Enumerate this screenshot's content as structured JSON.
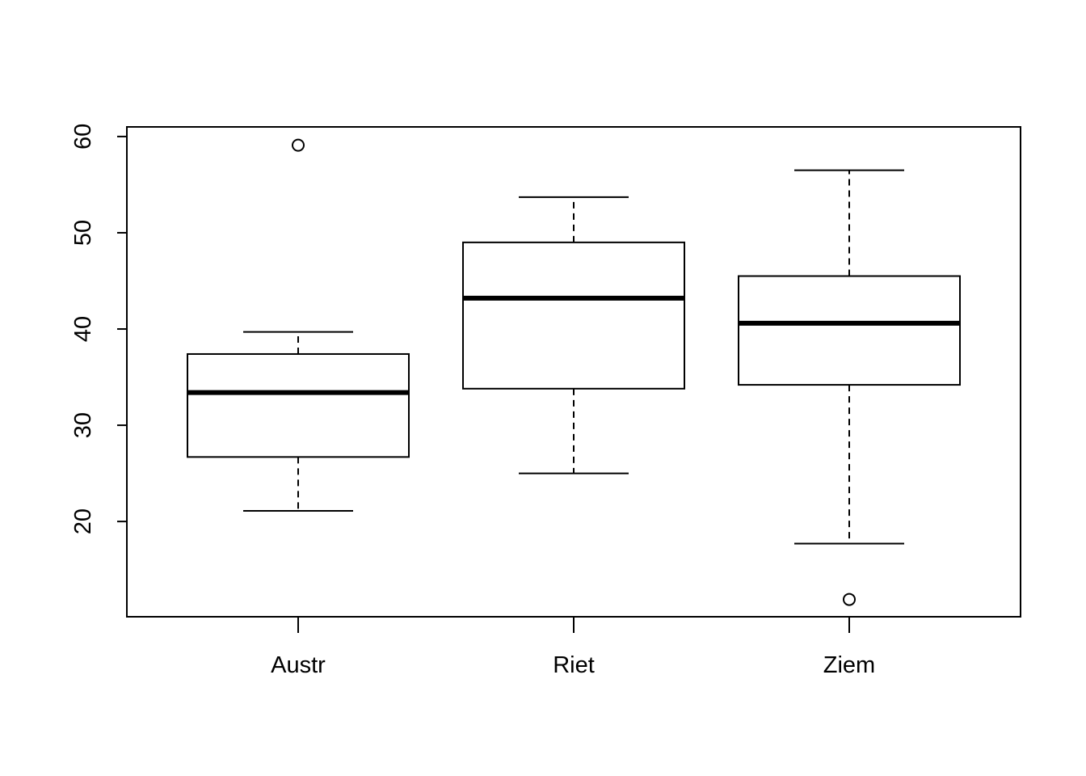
{
  "chart_data": {
    "type": "box",
    "categories": [
      "Austr",
      "Riet",
      "Ziem"
    ],
    "whisker_low": [
      21.1,
      25.0,
      17.7
    ],
    "q1": [
      26.7,
      33.8,
      34.2
    ],
    "median": [
      33.4,
      43.2,
      40.6
    ],
    "q3": [
      37.4,
      49.0,
      45.5
    ],
    "whisker_high": [
      39.7,
      53.7,
      56.5
    ],
    "outliers": [
      [
        59.1
      ],
      [],
      [
        11.9
      ]
    ],
    "color": "#000000",
    "ylim": [
      10.1,
      61.0
    ],
    "yticks": [
      20,
      30,
      40,
      50,
      60
    ]
  }
}
